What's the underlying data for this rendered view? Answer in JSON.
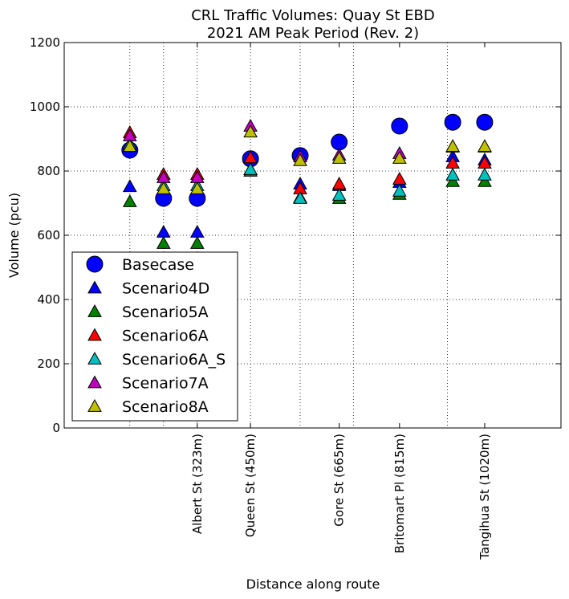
{
  "chart_data": {
    "type": "scatter",
    "title": "CRL Traffic Volumes: Quay St EBD",
    "subtitle": "2021 AM Peak Period (Rev. 2)",
    "xlabel": "Distance along route",
    "ylabel": "Volume (pcu)",
    "ylim": [
      0,
      1200
    ],
    "xlim": [
      0,
      1400
    ],
    "yticks": [
      0,
      200,
      400,
      600,
      800,
      1000,
      1200
    ],
    "grid": true,
    "legend_position": "lower-left",
    "x_gridlines": [
      185,
      280,
      375,
      525,
      665,
      815,
      1080
    ],
    "x_ticks": [
      {
        "x": 375,
        "label": "Albert St (323m)"
      },
      {
        "x": 525,
        "label": "Queen St (450m)"
      },
      {
        "x": 775,
        "label": "Gore St (665m)"
      },
      {
        "x": 945,
        "label": "Britomart Pl (815m)"
      },
      {
        "x": 1185,
        "label": "Tangihua St (1020m)"
      }
    ],
    "series": [
      {
        "name": "Basecase",
        "marker": "circle",
        "color": "#0000ff",
        "x": [
          185,
          280,
          375,
          525,
          665,
          775,
          945,
          1095,
          1185
        ],
        "y": [
          865,
          715,
          715,
          838,
          848,
          890,
          940,
          952,
          952
        ]
      },
      {
        "name": "Scenario4D",
        "marker": "triangle",
        "color": "#0000ff",
        "x": [
          185,
          280,
          375,
          525,
          665,
          775,
          945,
          1095,
          1185
        ],
        "y": [
          752,
          610,
          610,
          805,
          760,
          755,
          765,
          845,
          835
        ]
      },
      {
        "name": "Scenario5A",
        "marker": "triangle",
        "color": "#008000",
        "x": [
          185,
          280,
          375,
          525,
          665,
          775,
          945,
          1095,
          1185
        ],
        "y": [
          705,
          575,
          575,
          800,
          718,
          715,
          728,
          768,
          768
        ]
      },
      {
        "name": "Scenario6A",
        "marker": "triangle",
        "color": "#ff0000",
        "x": [
          185,
          280,
          375,
          525,
          665,
          775,
          945,
          1095,
          1185
        ],
        "y": [
          920,
          790,
          790,
          842,
          745,
          760,
          775,
          825,
          825
        ]
      },
      {
        "name": "Scenario6A_S",
        "marker": "triangle",
        "color": "#00bfbf",
        "x": [
          185,
          280,
          375,
          525,
          665,
          775,
          945,
          1095,
          1185
        ],
        "y": [
          885,
          755,
          755,
          805,
          715,
          725,
          738,
          788,
          788
        ]
      },
      {
        "name": "Scenario7A",
        "marker": "triangle",
        "color": "#bf00bf",
        "x": [
          185,
          280,
          375,
          525,
          665,
          775,
          945,
          1095,
          1185
        ],
        "y": [
          910,
          780,
          780,
          940,
          845,
          850,
          855,
          875,
          875
        ]
      },
      {
        "name": "Scenario8A",
        "marker": "triangle",
        "color": "#bfbf00",
        "x": [
          185,
          280,
          375,
          525,
          665,
          775,
          945,
          1095,
          1185
        ],
        "y": [
          877,
          745,
          745,
          922,
          833,
          840,
          840,
          877,
          877
        ]
      }
    ]
  }
}
